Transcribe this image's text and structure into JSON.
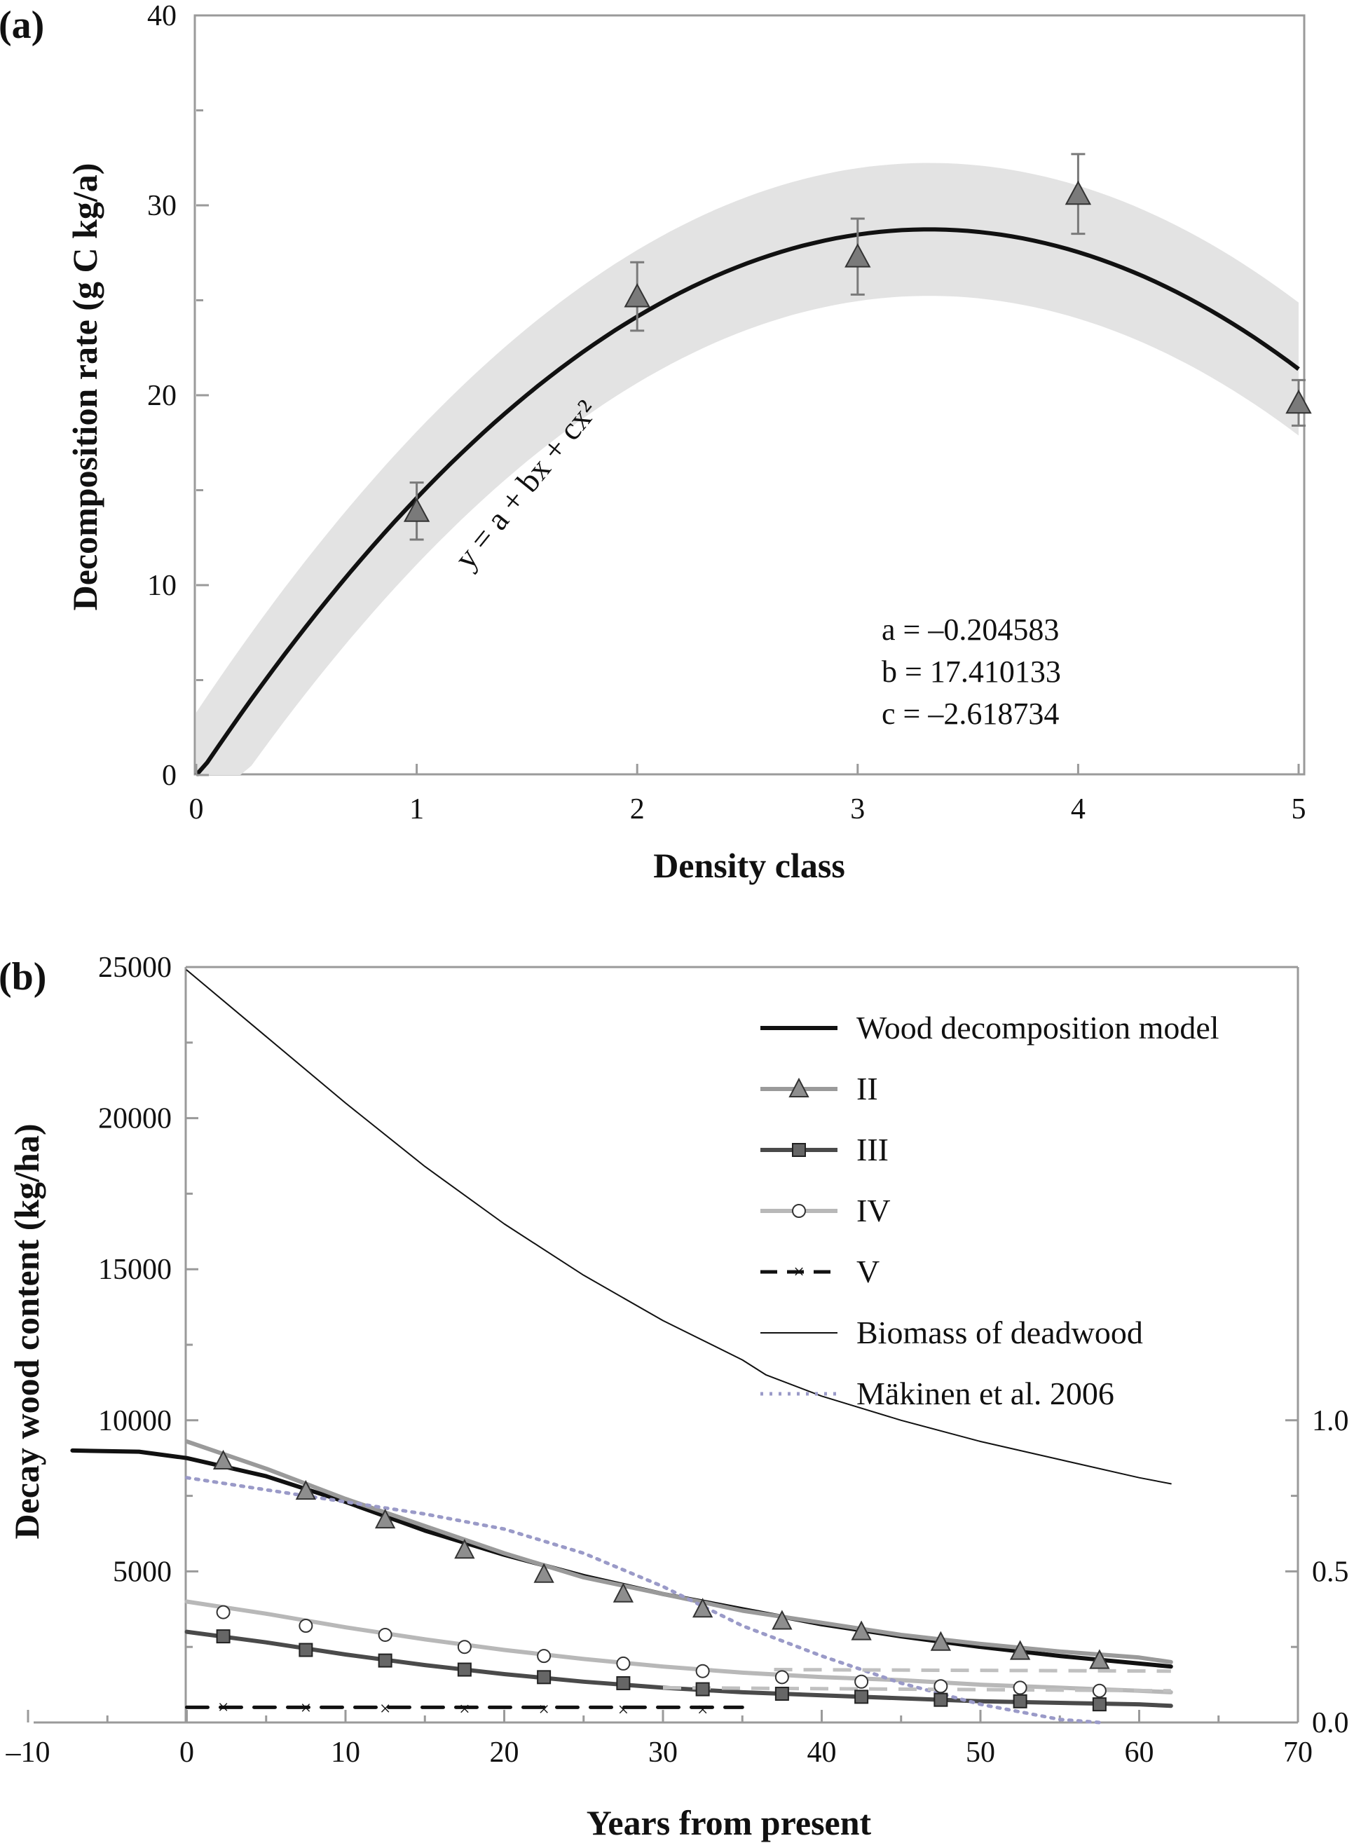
{
  "chart_data": [
    {
      "panel": "(a)",
      "type": "scatter",
      "xlabel": "Density class",
      "ylabel": "Decomposition rate (g C kg/a)",
      "xlim": [
        0,
        5
      ],
      "ylim": [
        0,
        40
      ],
      "xticks": [
        "0",
        "1",
        "2",
        "3",
        "4",
        "5"
      ],
      "yticks": [
        "0",
        "10",
        "20",
        "30",
        "40"
      ],
      "points": [
        {
          "x": 1,
          "y": 13.9,
          "err": 1.5
        },
        {
          "x": 2,
          "y": 25.2,
          "err": 1.8
        },
        {
          "x": 3,
          "y": 27.3,
          "err": 2.0
        },
        {
          "x": 4,
          "y": 30.6,
          "err": 2.1
        },
        {
          "x": 5,
          "y": 19.6,
          "err": 1.2
        }
      ],
      "fit": {
        "a": -0.204583,
        "b": 17.410133,
        "c": -2.618734,
        "band_halfwidth": 2.5
      },
      "equation_label": "y = a + bx + cx²",
      "params_text": [
        "a = –0.204583",
        "b = 17.410133",
        "c = –2.618734"
      ],
      "colors": {
        "curve": "#111111",
        "band": "#e3e3e3",
        "marker": "#7a7a7a",
        "errorbar": "#7a7a7a"
      }
    },
    {
      "panel": "(b)",
      "type": "line",
      "xlabel": "Years from present",
      "ylabel": "Decay wood content (kg/ha)",
      "xlim": [
        -10,
        70
      ],
      "ylim": [
        0,
        25000
      ],
      "y2lim": [
        0,
        2.5
      ],
      "xticks": [
        "–10",
        "0",
        "10",
        "20",
        "30",
        "40",
        "50",
        "60",
        "70"
      ],
      "yticks": [
        "5000",
        "10000",
        "15000",
        "20000",
        "25000"
      ],
      "y2ticks": [
        "0.0",
        "0.5",
        "1.0"
      ],
      "legend_position": "top-right",
      "series": [
        {
          "name": "Wood decomposition model",
          "color": "#111111",
          "style": "thick",
          "x": [
            -7.2,
            -3,
            0,
            5,
            10,
            15,
            20,
            25,
            30,
            35,
            40,
            45,
            50,
            55,
            60,
            62
          ],
          "y": [
            9000,
            8960,
            8750,
            8150,
            7300,
            6350,
            5550,
            4850,
            4250,
            3750,
            3250,
            2850,
            2500,
            2200,
            1950,
            1850
          ]
        },
        {
          "name": "II",
          "color": "#9a9a9a",
          "style": "thick",
          "marker": "triangle",
          "x": [
            0,
            5,
            10,
            15,
            20,
            25,
            30,
            35,
            40,
            45,
            50,
            55,
            60,
            62
          ],
          "y": [
            9300,
            8400,
            7400,
            6500,
            5600,
            4800,
            4250,
            3700,
            3300,
            2900,
            2600,
            2350,
            2150,
            2000
          ],
          "mx": [
            2.3,
            7.5,
            12.5,
            17.5,
            22.5,
            27.5,
            32.5,
            37.5,
            42.5,
            47.5,
            52.5,
            57.5
          ],
          "my": [
            8650,
            7650,
            6700,
            5700,
            4900,
            4250,
            3750,
            3350,
            3000,
            2650,
            2350,
            2050
          ]
        },
        {
          "name": "III",
          "color": "#4a4a4a",
          "style": "thick",
          "marker": "square",
          "x": [
            0,
            5,
            10,
            15,
            20,
            25,
            30,
            35,
            40,
            45,
            50,
            55,
            60,
            62
          ],
          "y": [
            3000,
            2650,
            2250,
            1900,
            1600,
            1350,
            1150,
            1000,
            900,
            800,
            700,
            650,
            600,
            550
          ],
          "mx": [
            2.3,
            7.5,
            12.5,
            17.5,
            22.5,
            27.5,
            32.5,
            37.5,
            42.5,
            47.5,
            52.5,
            57.5
          ],
          "my": [
            2850,
            2400,
            2050,
            1750,
            1500,
            1300,
            1100,
            950,
            850,
            750,
            700,
            600
          ]
        },
        {
          "name": "IV",
          "color": "#b8b8b8",
          "style": "thick",
          "marker": "circle",
          "x": [
            0,
            5,
            10,
            15,
            20,
            25,
            30,
            35,
            40,
            45,
            50,
            55,
            60,
            62
          ],
          "y": [
            4000,
            3600,
            3150,
            2750,
            2400,
            2100,
            1850,
            1650,
            1500,
            1400,
            1250,
            1150,
            1050,
            1000
          ],
          "mx": [
            2.3,
            7.5,
            12.5,
            17.5,
            22.5,
            27.5,
            32.5,
            37.5,
            42.5,
            47.5,
            52.5,
            57.5
          ],
          "my": [
            3650,
            3200,
            2900,
            2500,
            2200,
            1950,
            1700,
            1500,
            1350,
            1200,
            1150,
            1050
          ]
        },
        {
          "name": "V",
          "color": "#111111",
          "style": "dash",
          "marker": "x",
          "x": [
            0,
            35
          ],
          "y": [
            500,
            500
          ],
          "mx": [
            2.3,
            7.5,
            12.5,
            17.5,
            22.5,
            27.5,
            32.5
          ],
          "my": [
            500,
            480,
            450,
            440,
            430,
            420,
            420
          ]
        },
        {
          "name": "Biomass of deadwood",
          "color": "#111111",
          "style": "thin",
          "x": [
            0,
            5,
            10,
            15,
            20,
            25,
            30,
            35,
            36.5,
            40,
            45,
            50,
            55,
            60,
            62
          ],
          "y": [
            24900,
            22700,
            20500,
            18400,
            16500,
            14800,
            13300,
            12000,
            11500,
            10800,
            10000,
            9300,
            8700,
            8100,
            7900
          ]
        },
        {
          "name": "Mäkinen et al. 2006",
          "color": "#9a9ac8",
          "style": "dot",
          "axis": "y2",
          "x": [
            0,
            5,
            10,
            15,
            20,
            25,
            30,
            35,
            40,
            45,
            50,
            55,
            57.5
          ],
          "y": [
            0.81,
            0.77,
            0.73,
            0.69,
            0.64,
            0.56,
            0.45,
            0.32,
            0.22,
            0.13,
            0.06,
            0.01,
            0.0
          ]
        }
      ],
      "colors": {
        "axes": "#9a9a9a",
        "dashed_lines": "#c0c0c0"
      }
    }
  ]
}
